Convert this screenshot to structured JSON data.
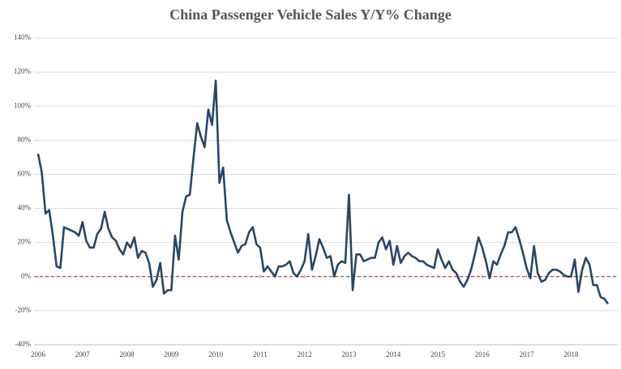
{
  "chart_data": {
    "type": "line",
    "title": "China Passenger Vehicle Sales Y/Y% Change",
    "categories": [
      "2006",
      null,
      null,
      null,
      null,
      null,
      null,
      null,
      null,
      null,
      null,
      null,
      "2007",
      null,
      null,
      null,
      null,
      null,
      null,
      null,
      null,
      null,
      null,
      null,
      "2008",
      null,
      null,
      null,
      null,
      null,
      null,
      null,
      null,
      null,
      null,
      null,
      "2009",
      null,
      null,
      null,
      null,
      null,
      null,
      null,
      null,
      null,
      null,
      null,
      "2010",
      null,
      null,
      null,
      null,
      null,
      null,
      null,
      null,
      null,
      null,
      null,
      "2011",
      null,
      null,
      null,
      null,
      null,
      null,
      null,
      null,
      null,
      null,
      null,
      "2012",
      null,
      null,
      null,
      null,
      null,
      null,
      null,
      null,
      null,
      null,
      null,
      "2013",
      null,
      null,
      null,
      null,
      null,
      null,
      null,
      null,
      null,
      null,
      null,
      "2014",
      null,
      null,
      null,
      null,
      null,
      null,
      null,
      null,
      null,
      null,
      null,
      "2015",
      null,
      null,
      null,
      null,
      null,
      null,
      null,
      null,
      null,
      null,
      null,
      "2016",
      null,
      null,
      null,
      null,
      null,
      null,
      null,
      null,
      null,
      null,
      null,
      "2017",
      null,
      null,
      null,
      null,
      null,
      null,
      null,
      null,
      null,
      null,
      null,
      "2018",
      null,
      null,
      null,
      null,
      null,
      null,
      null,
      null,
      null,
      null
    ],
    "series": [
      {
        "color": "#284766",
        "values": [
          72,
          61,
          37,
          39,
          24,
          6,
          5,
          29,
          28,
          27,
          26,
          24,
          32,
          21,
          17,
          17,
          25,
          28,
          38,
          28,
          23,
          21,
          16,
          13,
          20,
          17,
          23,
          11,
          15,
          14,
          8,
          -6,
          -2,
          8,
          -10,
          -8,
          -8,
          24,
          10,
          38,
          47,
          48,
          70,
          90,
          82,
          76,
          98,
          89,
          115,
          55,
          64,
          33,
          26,
          20,
          14,
          18,
          19,
          26,
          29,
          19,
          17,
          3,
          6,
          3,
          0,
          6,
          6,
          7,
          9,
          2,
          0,
          4,
          9,
          25,
          4,
          12,
          22,
          17,
          11,
          12,
          0,
          7,
          9,
          8,
          48,
          -8,
          13,
          13,
          9,
          10,
          11,
          11,
          20,
          23,
          16,
          21,
          7,
          18,
          8,
          12,
          14,
          12,
          11,
          9,
          9,
          7,
          6,
          5,
          16,
          10,
          5,
          9,
          4,
          2,
          -3,
          -6,
          -2,
          4,
          13,
          23,
          17,
          9,
          -1,
          9,
          7,
          13,
          18,
          26,
          26,
          29,
          22,
          14,
          5,
          -1,
          18,
          2,
          -3,
          -2,
          2,
          4,
          4,
          3,
          1,
          0,
          0,
          10,
          -9,
          4,
          11,
          7,
          -5,
          -5,
          -12,
          -13,
          -16
        ]
      }
    ],
    "ylim": [
      -40,
      140
    ],
    "yticks": [
      {
        "value": -40,
        "label": "-40%"
      },
      {
        "value": -20,
        "label": "-20%"
      },
      {
        "value": 0,
        "label": "0%"
      },
      {
        "value": 20,
        "label": "20%"
      },
      {
        "value": 40,
        "label": "40%"
      },
      {
        "value": 60,
        "label": "60%"
      },
      {
        "value": 80,
        "label": "80%"
      },
      {
        "value": 100,
        "label": "100%"
      },
      {
        "value": 120,
        "label": "120%"
      },
      {
        "value": 140,
        "label": "140%"
      }
    ],
    "grid": true,
    "reference_line": {
      "value": 0,
      "color": "#b22222"
    }
  }
}
